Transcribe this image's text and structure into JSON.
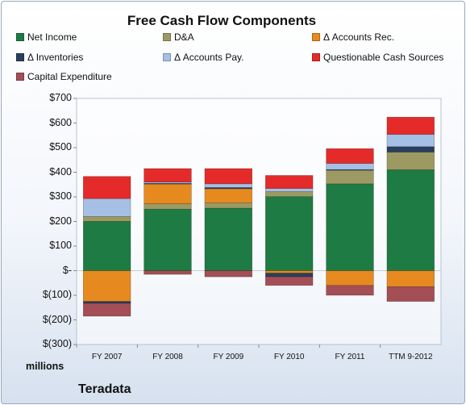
{
  "chart_data": {
    "type": "bar",
    "title": "Free Cash Flow Components",
    "unit_label": "millions",
    "company": "Teradata",
    "categories": [
      "FY 2007",
      "FY 2008",
      "FY 2009",
      "FY 2010",
      "FY 2011",
      "TTM 9-2012"
    ],
    "ylim": [
      -300,
      700
    ],
    "y_ticks": [
      700,
      600,
      500,
      400,
      300,
      200,
      100,
      0,
      -100,
      -200,
      -300
    ],
    "y_tick_labels": [
      "$700",
      "$600",
      "$500",
      "$400",
      "$300",
      "$200",
      "$100",
      "$-",
      "$(100)",
      "$(200)",
      "$(300)"
    ],
    "stacked": true,
    "legend_position": "top",
    "series": [
      {
        "name": "Net Income",
        "color": "#1e7b43",
        "values": [
          200,
          250,
          254,
          301,
          353,
          410
        ]
      },
      {
        "name": "D&A",
        "color": "#9c9a62",
        "values": [
          20,
          22,
          22,
          20,
          55,
          72
        ]
      },
      {
        "name": "Δ Accounts Rec.",
        "color": "#e68a1f",
        "values": [
          -125,
          80,
          57,
          -10,
          -60,
          -65
        ]
      },
      {
        "name": "Δ Inventories",
        "color": "#2a3f5e",
        "values": [
          -8,
          3,
          5,
          -15,
          3,
          22
        ]
      },
      {
        "name": "Δ Accounts Pay.",
        "color": "#a5c0e4",
        "values": [
          73,
          5,
          15,
          13,
          25,
          50
        ]
      },
      {
        "name": "Questionable Cash Sources",
        "color": "#e52a2a",
        "values": [
          90,
          55,
          62,
          53,
          60,
          70
        ]
      },
      {
        "name": "Capital Expenditure",
        "color": "#a44e55",
        "values": [
          -52,
          -15,
          -25,
          -35,
          -40,
          -60
        ]
      }
    ]
  }
}
